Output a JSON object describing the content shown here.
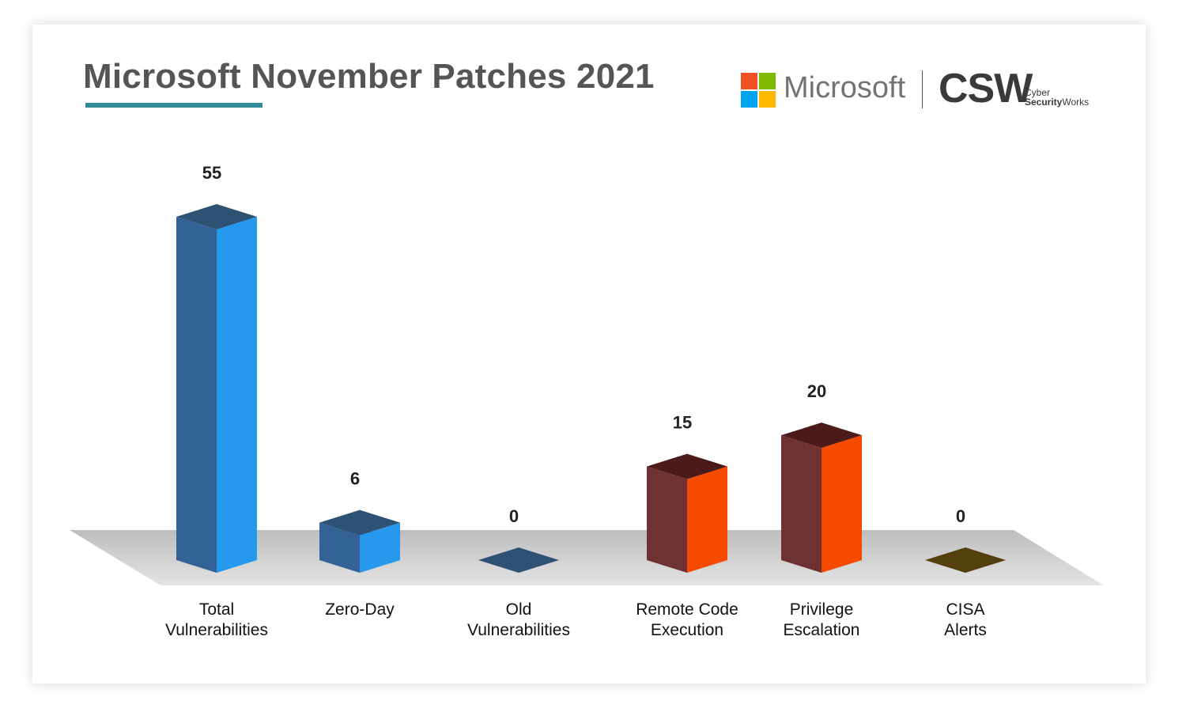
{
  "header": {
    "title": "Microsoft November Patches 2021",
    "microsoft_logo_text": "Microsoft",
    "csw_logo_text": "CSW",
    "csw_sub_line1": "Cyber",
    "csw_sub_line2_bold": "Security",
    "csw_sub_line2_rest": "Works"
  },
  "brand_colors": {
    "title_underline": "#2f8c96",
    "ms_red": "#f25022",
    "ms_green": "#7fba00",
    "ms_blue": "#00a4ef",
    "ms_yellow": "#ffb900"
  },
  "chart_data": {
    "type": "bar",
    "style": "3d",
    "title": "Microsoft November Patches 2021",
    "xlabel": "",
    "ylabel": "",
    "grid": false,
    "legend": "none",
    "ylim": [
      0,
      55
    ],
    "categories": [
      [
        "Total",
        "Vulnerabilities"
      ],
      [
        "Zero-Day"
      ],
      [
        "Old",
        "Vulnerabilities"
      ],
      [
        "Remote Code",
        "Execution"
      ],
      [
        "Privilege",
        "Escalation"
      ],
      [
        "CISA",
        "Alerts"
      ]
    ],
    "values": [
      55,
      6,
      0,
      15,
      20,
      0
    ],
    "colors": [
      {
        "front": "#2699ee",
        "side": "#336396",
        "top": "#2e5274"
      },
      {
        "front": "#2699ee",
        "side": "#336396",
        "top": "#2e5274"
      },
      {
        "front": "#2699ee",
        "side": "#336396",
        "top": "#2e5274"
      },
      {
        "front": "#f64a00",
        "side": "#6e3232",
        "top": "#4b1b1b"
      },
      {
        "front": "#f64a00",
        "side": "#6e3232",
        "top": "#4b1b1b"
      },
      {
        "front": "#f64a00",
        "side": "#6e3232",
        "top": "#54400f"
      }
    ]
  }
}
